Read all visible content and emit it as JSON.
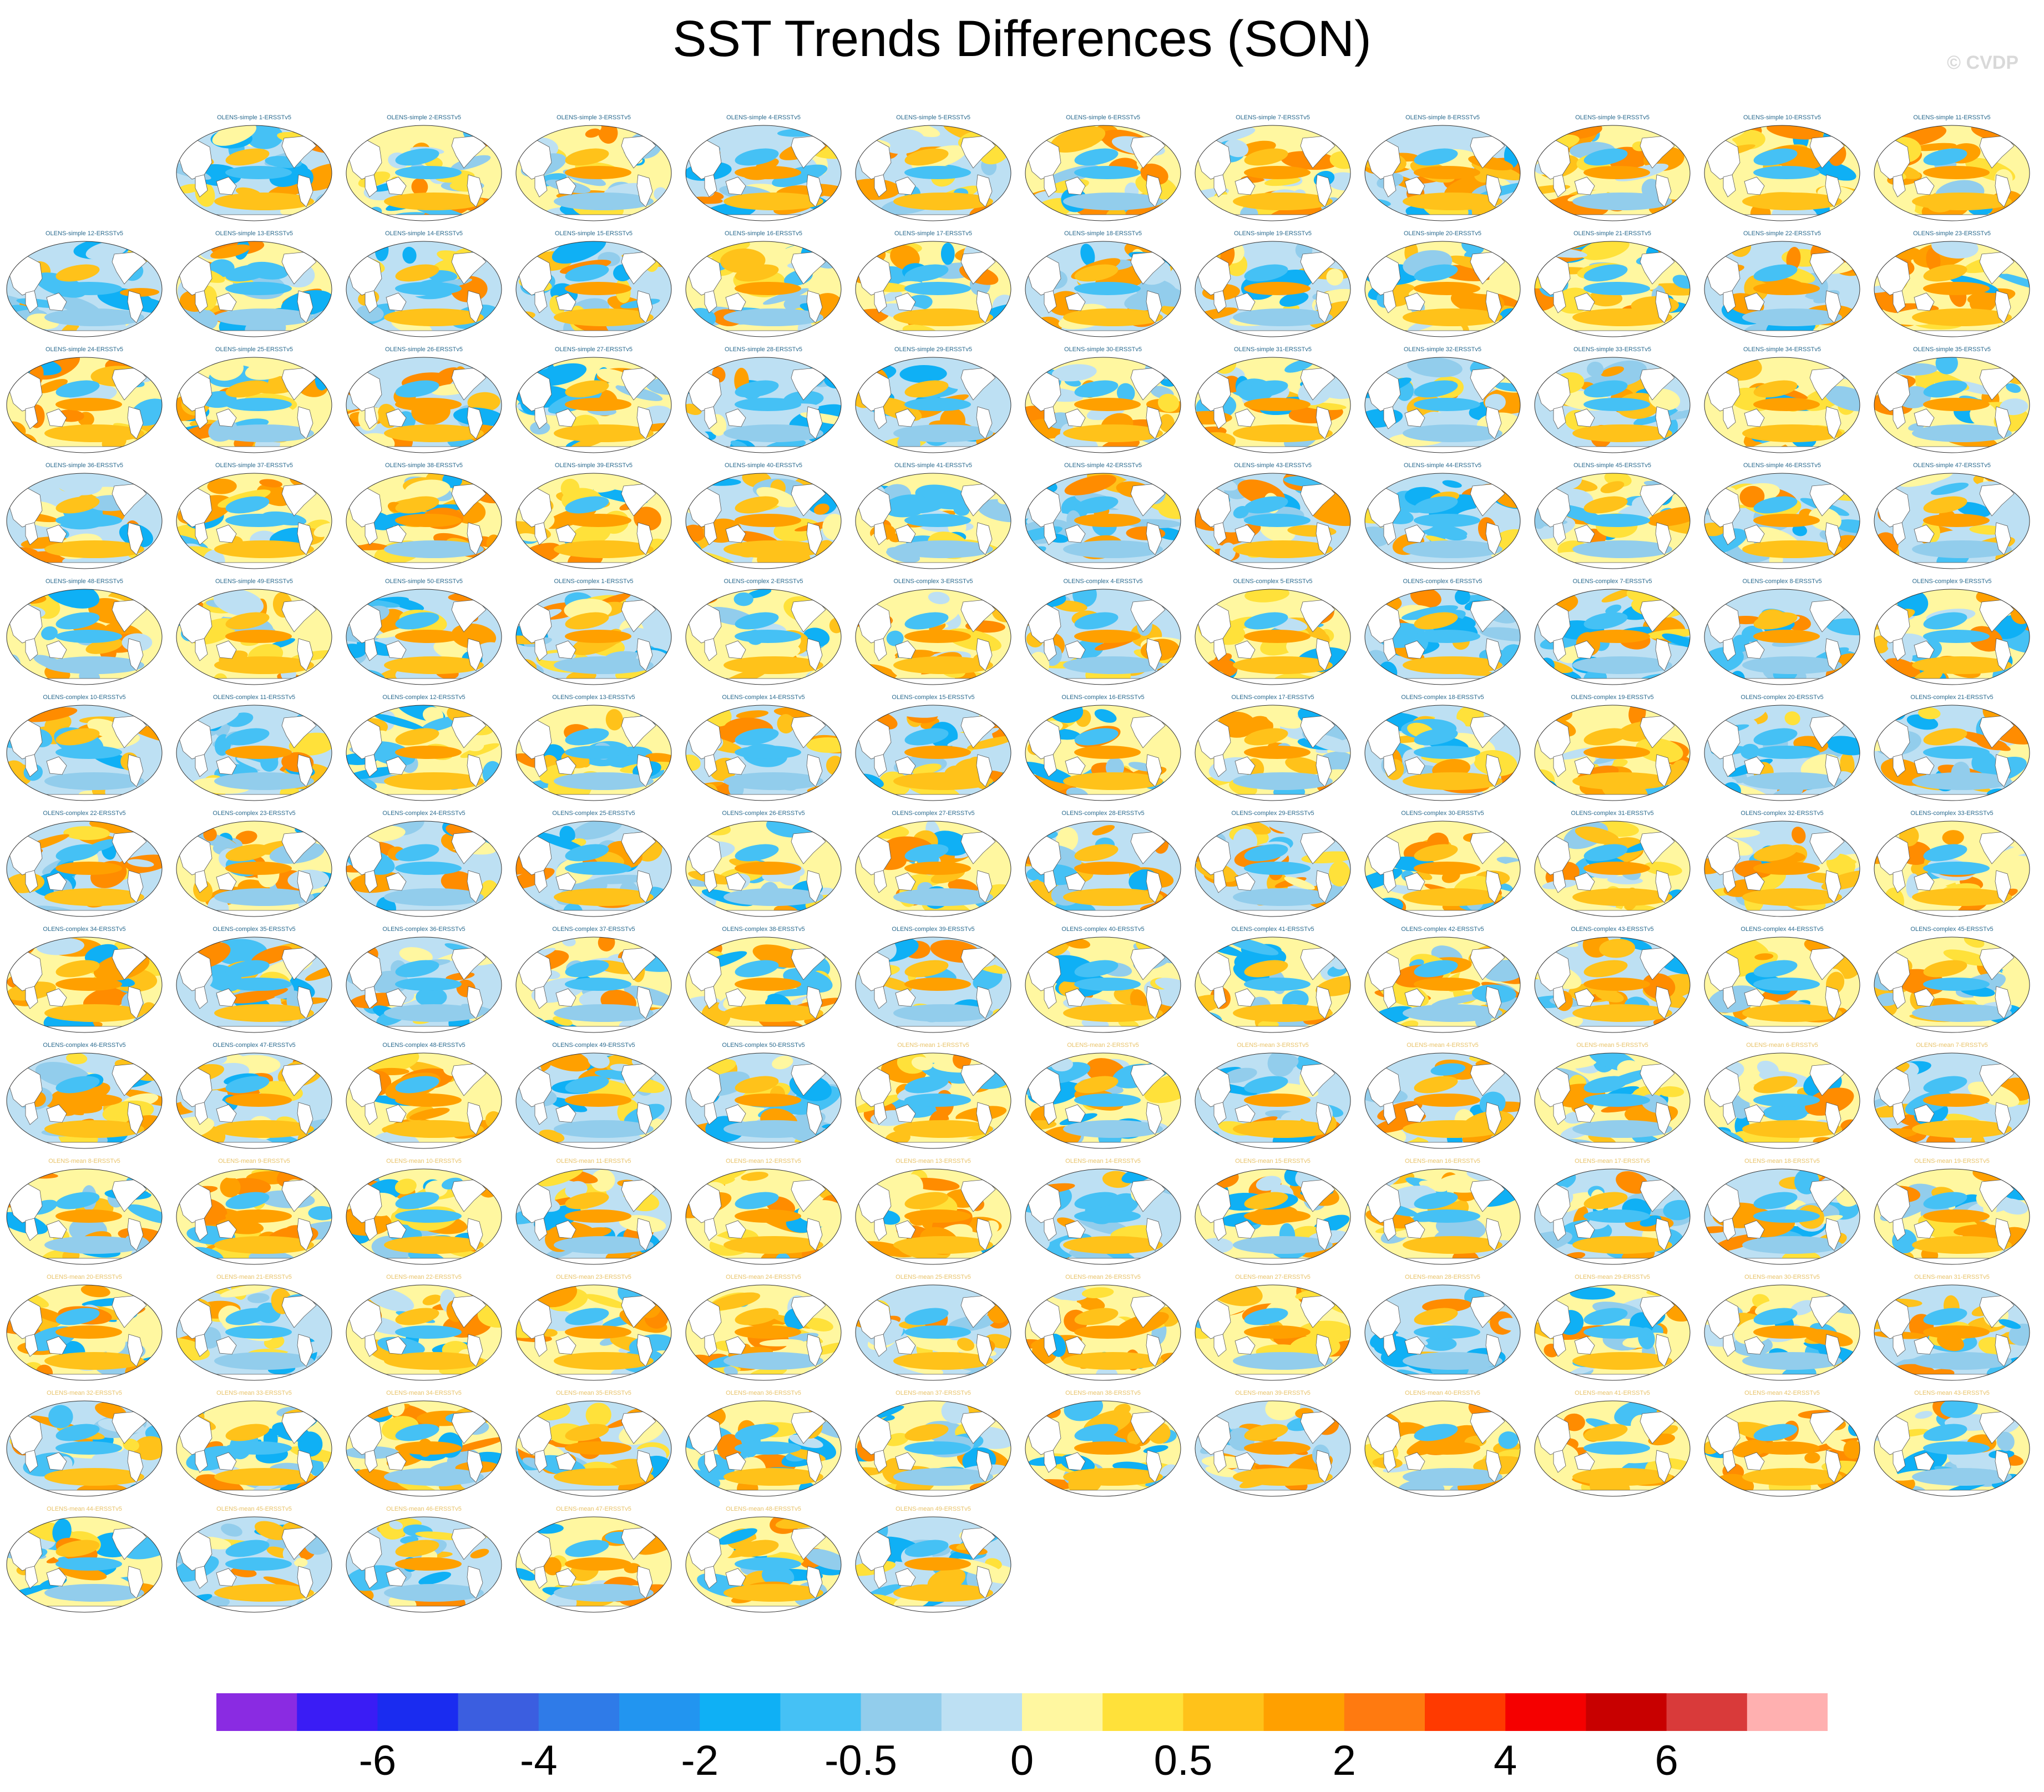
{
  "title": "SST Trends Differences (SON)",
  "credit": "© CVDP",
  "chart_data": {
    "type": "heatmap",
    "title": "SST Trends Differences (SON)",
    "description_of_panels": "Grid of global map panels, one per ensemble member minus observations",
    "panel_groups": [
      {
        "prefix": "OLENS-simple",
        "first": 1,
        "last": 50,
        "suffix": "-ERSSTv5",
        "label_color": "#2b6b8f"
      },
      {
        "prefix": "OLENS-complex",
        "first": 1,
        "last": 50,
        "suffix": "-ERSSTv5",
        "label_color": "#2b6b8f"
      },
      {
        "prefix": "OLENS-mean",
        "first": 1,
        "last": 49,
        "suffix": "-ERSSTv5",
        "label_color": "#e8c36a"
      }
    ],
    "colorbar": {
      "colors": [
        "#8a2be2",
        "#3a1cf5",
        "#1a2cf0",
        "#3b5ee0",
        "#2f7be8",
        "#2295f0",
        "#0fb0f5",
        "#45c1f5",
        "#92cdec",
        "#bde0f3",
        "#fff7a0",
        "#ffe13a",
        "#ffc21a",
        "#ffa000",
        "#ff7a10",
        "#ff3a00",
        "#f50000",
        "#c80000",
        "#d93a3a",
        "#ffb0b0"
      ],
      "tick_labels": [
        "-6",
        "-4",
        "-2",
        "-0.5",
        "0",
        "0.5",
        "2",
        "4",
        "6"
      ]
    }
  }
}
